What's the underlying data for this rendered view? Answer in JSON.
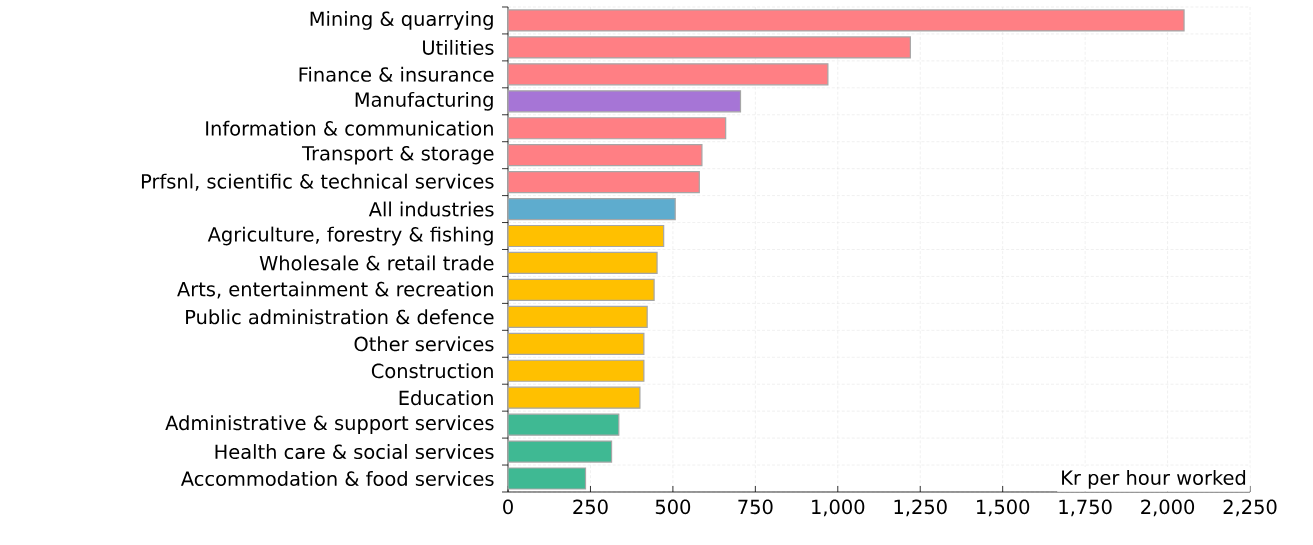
{
  "chart_data": {
    "type": "bar",
    "orientation": "horizontal",
    "xlabel": "Kr per hour worked",
    "categories": [
      "Mining & quarrying",
      "Utilities",
      "Finance & insurance",
      "Manufacturing",
      "Information & communication",
      "Transport & storage",
      "Prfsnl, scientific & technical services",
      "All industries",
      "Agriculture, forestry & fishing",
      "Wholesale & retail trade",
      "Arts, entertainment & recreation",
      "Public administration & defence",
      "Other services",
      "Construction",
      "Education",
      "Administrative & support services",
      "Health care & social services",
      "Accommodation & food services"
    ],
    "values": [
      2050,
      1220,
      970,
      705,
      660,
      588,
      580,
      507,
      472,
      452,
      443,
      422,
      412,
      412,
      400,
      336,
      314,
      235
    ],
    "colors": [
      "#ff7f84",
      "#ff7f84",
      "#ff7f84",
      "#a675d6",
      "#ff7f84",
      "#ff7f84",
      "#ff7f84",
      "#5eacce",
      "#ffc000",
      "#ffc000",
      "#ffc000",
      "#ffc000",
      "#ffc000",
      "#ffc000",
      "#ffc000",
      "#3fb993",
      "#3fb993",
      "#3fb993"
    ],
    "xlim": [
      0,
      2250
    ],
    "xticks": [
      0,
      250,
      500,
      750,
      {
        "value": 1000,
        "label": "1,000"
      },
      {
        "value": 1250,
        "label": "1,250"
      },
      {
        "value": 1500,
        "label": "1,500"
      },
      {
        "value": 1750,
        "label": "1,750"
      },
      {
        "value": 2000,
        "label": "2,000"
      },
      {
        "value": 2250,
        "label": "2,250"
      }
    ],
    "grid": true
  }
}
